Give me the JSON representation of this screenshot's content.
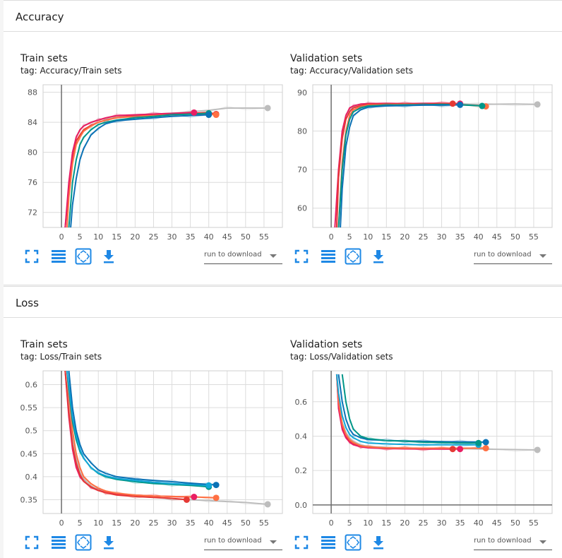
{
  "sections": {
    "accuracy": {
      "title": "Accuracy"
    },
    "loss": {
      "title": "Loss"
    }
  },
  "toolbar": {
    "run_to_download": "run to download",
    "icons": [
      "fullscreen-icon",
      "toggle-log-scale-icon",
      "fit-domain-icon",
      "download-icon"
    ]
  },
  "colors": {
    "grey": "#bdbdbd",
    "red": "#e53935",
    "orange": "#ff7043",
    "blue": "#0b72b5",
    "teal": "#009688",
    "cyan": "#12a7d8",
    "pink": "#e91e63",
    "toolbar_icon": "#1e88e5"
  },
  "chart_data": [
    {
      "id": "acc-train",
      "type": "line",
      "title": "Train sets",
      "tag": "tag: Accuracy/Train sets",
      "xlim": [
        -5,
        60
      ],
      "ylim": [
        70,
        89
      ],
      "xticks": [
        0,
        5,
        10,
        15,
        20,
        25,
        30,
        35,
        40,
        45,
        50,
        55
      ],
      "yticks": [
        72,
        76,
        80,
        84,
        88
      ],
      "series": [
        {
          "color": "grey",
          "end": 56,
          "x": [
            1.5,
            2,
            3,
            4,
            5,
            6,
            8,
            10,
            12,
            15,
            20,
            25,
            30,
            35,
            40,
            45,
            50,
            56
          ],
          "y": [
            70,
            75,
            80,
            82,
            83,
            83.5,
            84,
            84.3,
            84.5,
            84.7,
            85,
            85.1,
            85.2,
            85.4,
            85.6,
            85.9,
            85.9,
            85.9
          ]
        },
        {
          "color": "red",
          "end": 42,
          "x": [
            1,
            2,
            3,
            4,
            5,
            6,
            8,
            10,
            12,
            15,
            20,
            25,
            30,
            35,
            40,
            42
          ],
          "y": [
            70,
            75,
            79,
            81.5,
            82.3,
            83,
            83.6,
            84,
            84.3,
            84.6,
            84.9,
            85,
            85.1,
            85.2,
            85.3,
            85.1
          ]
        },
        {
          "color": "orange",
          "end": 42,
          "x": [
            1.5,
            2,
            3,
            4,
            5,
            6,
            8,
            10,
            12,
            15,
            20,
            25,
            30,
            35,
            40,
            42
          ],
          "y": [
            70,
            74,
            78.5,
            81,
            82,
            82.8,
            83.5,
            84,
            84.3,
            84.6,
            84.8,
            84.9,
            85,
            85.1,
            85.1,
            85.0
          ]
        },
        {
          "color": "pink",
          "end": 36,
          "x": [
            1,
            2,
            3,
            4,
            5,
            6,
            8,
            10,
            12,
            15,
            20,
            25,
            30,
            36
          ],
          "y": [
            70,
            76,
            80,
            82,
            83,
            83.5,
            84,
            84.3,
            84.6,
            84.9,
            85,
            85.1,
            85.2,
            85.3
          ]
        },
        {
          "color": "teal",
          "end": 40,
          "x": [
            2,
            3,
            4,
            5,
            6,
            8,
            10,
            12,
            15,
            20,
            25,
            30,
            35,
            40
          ],
          "y": [
            70,
            76,
            79,
            81,
            82,
            83,
            83.7,
            84,
            84.3,
            84.6,
            84.8,
            85,
            85.1,
            85.2
          ]
        },
        {
          "color": "blue",
          "end": 40,
          "x": [
            2.5,
            3,
            4,
            5,
            6,
            8,
            10,
            12,
            15,
            20,
            25,
            30,
            35,
            40
          ],
          "y": [
            70,
            73,
            76.5,
            79,
            80.5,
            82.3,
            83.2,
            83.8,
            84.2,
            84.4,
            84.6,
            84.8,
            84.9,
            85.0
          ]
        }
      ]
    },
    {
      "id": "acc-val",
      "type": "line",
      "title": "Validation sets",
      "tag": "tag: Accuracy/Validation sets",
      "xlim": [
        -5,
        60
      ],
      "ylim": [
        55,
        92
      ],
      "xticks": [
        0,
        5,
        10,
        15,
        20,
        25,
        30,
        35,
        40,
        45,
        50,
        55
      ],
      "yticks": [
        60,
        70,
        80,
        90
      ],
      "series": [
        {
          "color": "grey",
          "end": 56,
          "x": [
            1.5,
            2,
            3,
            4,
            5,
            6,
            8,
            10,
            15,
            20,
            30,
            40,
            50,
            56
          ],
          "y": [
            55,
            68,
            80,
            84,
            85.5,
            86.2,
            86.7,
            86.9,
            87,
            87,
            87,
            86.9,
            87,
            86.9
          ]
        },
        {
          "color": "pink",
          "end": 35,
          "x": [
            1,
            2,
            3,
            4,
            5,
            6,
            8,
            10,
            15,
            20,
            25,
            30,
            35
          ],
          "y": [
            55,
            70,
            80,
            84,
            86,
            86.5,
            87,
            87.1,
            87.2,
            87.1,
            87.2,
            87.2,
            87.1
          ]
        },
        {
          "color": "red",
          "end": 33,
          "x": [
            1.5,
            2,
            3,
            4,
            5,
            6,
            8,
            10,
            15,
            20,
            25,
            30,
            33
          ],
          "y": [
            55,
            68,
            78,
            83,
            85,
            86,
            86.6,
            86.9,
            87,
            87,
            87,
            87.1,
            87.1
          ]
        },
        {
          "color": "orange",
          "end": 42,
          "x": [
            2,
            3,
            4,
            5,
            6,
            8,
            10,
            15,
            20,
            25,
            30,
            35,
            40,
            42
          ],
          "y": [
            55,
            72,
            80,
            84,
            85.5,
            86.3,
            86.7,
            86.8,
            86.9,
            86.8,
            86.9,
            86.8,
            86.6,
            86.4
          ]
        },
        {
          "color": "teal",
          "end": 41,
          "x": [
            2,
            3,
            4,
            5,
            6,
            8,
            10,
            15,
            20,
            25,
            30,
            35,
            41
          ],
          "y": [
            55,
            70,
            79,
            83,
            85,
            86,
            86.5,
            86.7,
            86.8,
            86.8,
            86.9,
            86.8,
            86.5
          ]
        },
        {
          "color": "blue",
          "end": 35,
          "x": [
            2.5,
            3,
            4,
            5,
            6,
            8,
            10,
            15,
            20,
            25,
            30,
            35
          ],
          "y": [
            55,
            65,
            76,
            81,
            84,
            85.5,
            86.2,
            86.5,
            86.6,
            86.7,
            86.7,
            86.8
          ]
        }
      ]
    },
    {
      "id": "loss-train",
      "type": "line",
      "title": "Train sets",
      "tag": "tag: Loss/Train sets",
      "xlim": [
        -5,
        60
      ],
      "ylim": [
        0.32,
        0.63
      ],
      "xticks": [
        0,
        5,
        10,
        15,
        20,
        25,
        30,
        35,
        40,
        45,
        50,
        55
      ],
      "yticks": [
        0.35,
        0.4,
        0.45,
        0.5,
        0.55,
        0.6
      ],
      "series": [
        {
          "color": "grey",
          "end": 56,
          "x": [
            1,
            2,
            3,
            4,
            5,
            6,
            8,
            10,
            12,
            15,
            20,
            25,
            30,
            35,
            40,
            45,
            50,
            56
          ],
          "y": [
            0.63,
            0.55,
            0.49,
            0.44,
            0.41,
            0.395,
            0.38,
            0.372,
            0.367,
            0.363,
            0.358,
            0.355,
            0.352,
            0.35,
            0.348,
            0.346,
            0.344,
            0.34
          ]
        },
        {
          "color": "pink",
          "end": 36,
          "x": [
            1,
            2,
            3,
            4,
            5,
            6,
            8,
            10,
            12,
            15,
            20,
            25,
            30,
            36
          ],
          "y": [
            0.63,
            0.53,
            0.46,
            0.42,
            0.4,
            0.39,
            0.377,
            0.37,
            0.366,
            0.362,
            0.36,
            0.358,
            0.357,
            0.356
          ]
        },
        {
          "color": "red",
          "end": 34,
          "x": [
            1,
            2,
            3,
            4,
            5,
            6,
            8,
            10,
            12,
            15,
            20,
            25,
            30,
            34
          ],
          "y": [
            0.63,
            0.54,
            0.47,
            0.43,
            0.405,
            0.39,
            0.378,
            0.37,
            0.365,
            0.36,
            0.357,
            0.355,
            0.353,
            0.35
          ]
        },
        {
          "color": "orange",
          "end": 42,
          "x": [
            1.5,
            2,
            3,
            4,
            5,
            6,
            8,
            10,
            12,
            15,
            20,
            25,
            30,
            35,
            40,
            42
          ],
          "y": [
            0.63,
            0.58,
            0.5,
            0.45,
            0.42,
            0.4,
            0.385,
            0.375,
            0.369,
            0.364,
            0.36,
            0.358,
            0.357,
            0.356,
            0.355,
            0.354
          ]
        },
        {
          "color": "teal",
          "end": 40,
          "x": [
            1.5,
            2,
            3,
            4,
            5,
            6,
            8,
            10,
            12,
            15,
            20,
            25,
            30,
            35,
            40
          ],
          "y": [
            0.63,
            0.59,
            0.52,
            0.48,
            0.455,
            0.44,
            0.42,
            0.407,
            0.4,
            0.394,
            0.389,
            0.385,
            0.383,
            0.381,
            0.378
          ]
        },
        {
          "color": "cyan",
          "end": 40,
          "x": [
            1.5,
            2,
            3,
            4,
            5,
            6,
            8,
            10,
            12,
            15,
            20,
            25,
            30,
            35,
            40
          ],
          "y": [
            0.63,
            0.6,
            0.53,
            0.49,
            0.46,
            0.44,
            0.42,
            0.408,
            0.402,
            0.396,
            0.392,
            0.388,
            0.385,
            0.383,
            0.381
          ]
        },
        {
          "color": "blue",
          "end": 42,
          "x": [
            2,
            3,
            4,
            5,
            6,
            8,
            10,
            12,
            15,
            20,
            25,
            30,
            35,
            40,
            42
          ],
          "y": [
            0.63,
            0.55,
            0.5,
            0.47,
            0.45,
            0.43,
            0.415,
            0.407,
            0.4,
            0.395,
            0.392,
            0.389,
            0.386,
            0.383,
            0.382
          ]
        }
      ]
    },
    {
      "id": "loss-val",
      "type": "line",
      "title": "Validation sets",
      "tag": "tag: Loss/Validation sets",
      "xlim": [
        -5,
        60
      ],
      "ylim": [
        -0.05,
        0.78
      ],
      "xticks": [
        0,
        5,
        10,
        15,
        20,
        25,
        30,
        35,
        40,
        45,
        50,
        55
      ],
      "yticks": [
        0,
        0.2,
        0.4,
        0.6
      ],
      "series": [
        {
          "color": "grey",
          "end": 56,
          "x": [
            1.5,
            2,
            3,
            4,
            5,
            6,
            8,
            10,
            15,
            20,
            30,
            40,
            50,
            56
          ],
          "y": [
            0.76,
            0.6,
            0.48,
            0.42,
            0.39,
            0.37,
            0.35,
            0.34,
            0.335,
            0.33,
            0.33,
            0.325,
            0.322,
            0.32
          ]
        },
        {
          "color": "red",
          "end": 33,
          "x": [
            1.5,
            2,
            3,
            4,
            5,
            6,
            8,
            10,
            15,
            20,
            25,
            30,
            33
          ],
          "y": [
            0.76,
            0.58,
            0.46,
            0.4,
            0.37,
            0.355,
            0.34,
            0.335,
            0.33,
            0.328,
            0.327,
            0.326,
            0.325
          ]
        },
        {
          "color": "pink",
          "end": 35,
          "x": [
            1.5,
            2,
            3,
            4,
            5,
            6,
            8,
            10,
            15,
            20,
            25,
            30,
            35
          ],
          "y": [
            0.76,
            0.56,
            0.44,
            0.39,
            0.365,
            0.35,
            0.338,
            0.332,
            0.328,
            0.326,
            0.325,
            0.325,
            0.325
          ]
        },
        {
          "color": "orange",
          "end": 42,
          "x": [
            1.5,
            2,
            3,
            4,
            5,
            6,
            8,
            10,
            15,
            20,
            25,
            30,
            35,
            40,
            42
          ],
          "y": [
            0.76,
            0.6,
            0.47,
            0.41,
            0.38,
            0.362,
            0.345,
            0.337,
            0.332,
            0.33,
            0.33,
            0.33,
            0.33,
            0.33,
            0.33
          ]
        },
        {
          "color": "cyan",
          "end": 40,
          "x": [
            1.5,
            2,
            3,
            4,
            5,
            6,
            8,
            10,
            15,
            20,
            25,
            30,
            35,
            40
          ],
          "y": [
            0.76,
            0.65,
            0.52,
            0.45,
            0.41,
            0.39,
            0.37,
            0.36,
            0.355,
            0.352,
            0.35,
            0.35,
            0.35,
            0.35
          ]
        },
        {
          "color": "blue",
          "end": 42,
          "x": [
            2,
            3,
            4,
            5,
            6,
            8,
            10,
            15,
            20,
            25,
            30,
            35,
            40,
            42
          ],
          "y": [
            0.76,
            0.6,
            0.5,
            0.44,
            0.41,
            0.39,
            0.38,
            0.375,
            0.372,
            0.37,
            0.368,
            0.367,
            0.366,
            0.365
          ]
        },
        {
          "color": "teal",
          "end": 40,
          "x": [
            3,
            4,
            5,
            6,
            8,
            10,
            15,
            20,
            25,
            30,
            35,
            40
          ],
          "y": [
            0.76,
            0.6,
            0.5,
            0.44,
            0.4,
            0.385,
            0.375,
            0.37,
            0.365,
            0.362,
            0.36,
            0.36
          ]
        }
      ]
    }
  ]
}
